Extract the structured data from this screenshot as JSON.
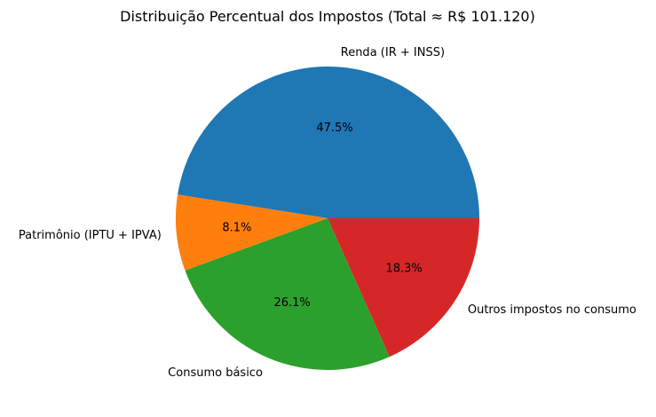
{
  "chart_data": {
    "type": "pie",
    "title": "Distribuição Percentual dos Impostos (Total ≈ R$ 101.120)",
    "start_angle_deg": 0,
    "direction": "counterclockwise",
    "slices": [
      {
        "label": "Renda (IR + INSS)",
        "value": 47.5,
        "pct_text": "47.5%",
        "color": "#1f77b4"
      },
      {
        "label": "Patrimônio (IPTU + IPVA)",
        "value": 8.1,
        "pct_text": "8.1%",
        "color": "#ff7f0e"
      },
      {
        "label": "Consumo básico",
        "value": 26.1,
        "pct_text": "26.1%",
        "color": "#2ca02c"
      },
      {
        "label": "Outros impostos no consumo",
        "value": 18.3,
        "pct_text": "18.3%",
        "color": "#d62728"
      }
    ]
  }
}
